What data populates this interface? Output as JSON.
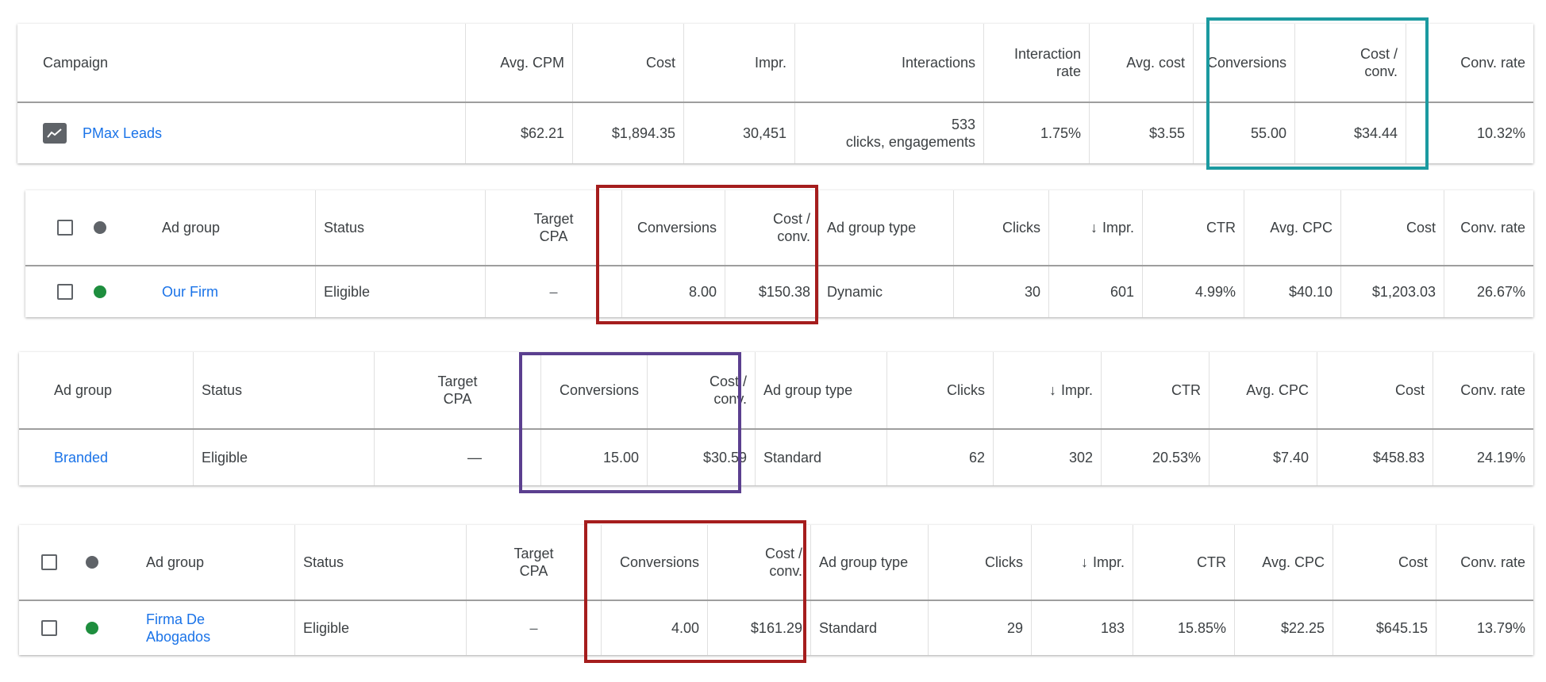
{
  "colors": {
    "link": "#1a73e8",
    "teal_box": "#1b9aa0",
    "red_box": "#a51d1d",
    "purple_box": "#5b3f8f",
    "status_green": "#1e8e3e"
  },
  "campaign_table": {
    "headers": {
      "campaign": "Campaign",
      "avg_cpm": "Avg. CPM",
      "cost": "Cost",
      "impr": "Impr.",
      "interactions": "Interactions",
      "interaction_rate_1": "Interaction",
      "interaction_rate_2": "rate",
      "avg_cost": "Avg. cost",
      "conversions": "Conversions",
      "cost_conv_1": "Cost /",
      "cost_conv_2": "conv.",
      "conv_rate": "Conv. rate"
    },
    "row": {
      "icon": "chart-icon",
      "name": "PMax Leads",
      "avg_cpm": "$62.21",
      "cost": "$1,894.35",
      "impr": "30,451",
      "interactions_count": "533",
      "interactions_sub": "clicks, engagements",
      "interaction_rate": "1.75%",
      "avg_cost": "$3.55",
      "conversions": "55.00",
      "cost_conv": "$34.44",
      "conv_rate": "10.32%"
    }
  },
  "adgroup_table_1": {
    "headers": {
      "ad_group": "Ad group",
      "status": "Status",
      "target_cpa_1": "Target",
      "target_cpa_2": "CPA",
      "conversions": "Conversions",
      "cost_conv_1": "Cost /",
      "cost_conv_2": "conv.",
      "ad_group_type": "Ad group type",
      "clicks": "Clicks",
      "impr": "Impr.",
      "ctr": "CTR",
      "avg_cpc": "Avg. CPC",
      "cost": "Cost",
      "conv_rate": "Conv. rate"
    },
    "row": {
      "name": "Our Firm",
      "status": "Eligible",
      "target_cpa": "–",
      "conversions": "8.00",
      "cost_conv": "$150.38",
      "ad_group_type": "Dynamic",
      "clicks": "30",
      "impr": "601",
      "ctr": "4.99%",
      "avg_cpc": "$40.10",
      "cost": "$1,203.03",
      "conv_rate": "26.67%"
    }
  },
  "adgroup_table_2": {
    "headers": {
      "ad_group": "Ad group",
      "status": "Status",
      "target_cpa_1": "Target",
      "target_cpa_2": "CPA",
      "conversions": "Conversions",
      "cost_conv_1": "Cost /",
      "cost_conv_2": "conv.",
      "ad_group_type": "Ad group type",
      "clicks": "Clicks",
      "impr": "Impr.",
      "ctr": "CTR",
      "avg_cpc": "Avg. CPC",
      "cost": "Cost",
      "conv_rate": "Conv. rate"
    },
    "row": {
      "name": "Branded",
      "status": "Eligible",
      "target_cpa": "—",
      "conversions": "15.00",
      "cost_conv": "$30.59",
      "ad_group_type": "Standard",
      "clicks": "62",
      "impr": "302",
      "ctr": "20.53%",
      "avg_cpc": "$7.40",
      "cost": "$458.83",
      "conv_rate": "24.19%"
    }
  },
  "adgroup_table_3": {
    "headers": {
      "ad_group": "Ad group",
      "status": "Status",
      "target_cpa_1": "Target",
      "target_cpa_2": "CPA",
      "conversions": "Conversions",
      "cost_conv_1": "Cost /",
      "cost_conv_2": "conv.",
      "ad_group_type": "Ad group type",
      "clicks": "Clicks",
      "impr": "Impr.",
      "ctr": "CTR",
      "avg_cpc": "Avg. CPC",
      "cost": "Cost",
      "conv_rate": "Conv. rate"
    },
    "row": {
      "name_1": "Firma De",
      "name_2": "Abogados",
      "status": "Eligible",
      "target_cpa": "–",
      "conversions": "4.00",
      "cost_conv": "$161.29",
      "ad_group_type": "Standard",
      "clicks": "29",
      "impr": "183",
      "ctr": "15.85%",
      "avg_cpc": "$22.25",
      "cost": "$645.15",
      "conv_rate": "13.79%"
    }
  },
  "sort_icon": "arrow-down-icon"
}
